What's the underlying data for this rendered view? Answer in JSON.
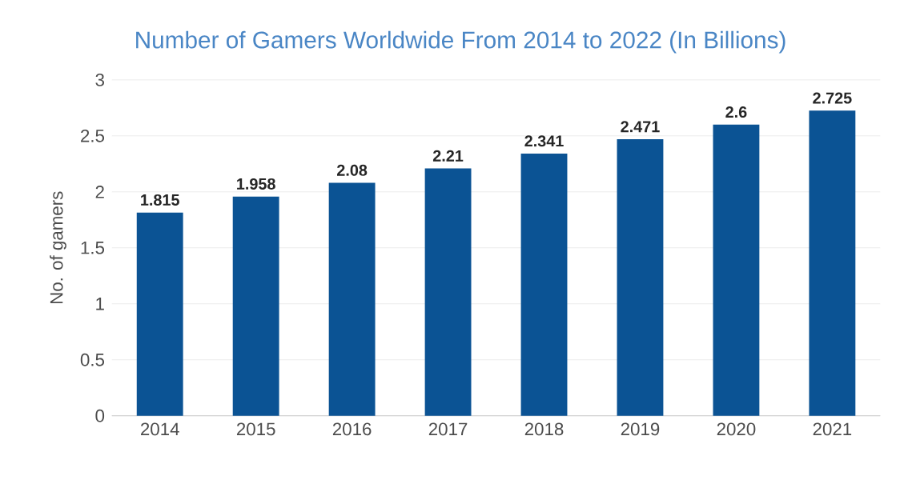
{
  "chart_data": {
    "type": "bar",
    "title": "Number of Gamers Worldwide From 2014 to 2022 (In Billions)",
    "ylabel": "No. of gamers",
    "categories": [
      "2014",
      "2015",
      "2016",
      "2017",
      "2018",
      "2019",
      "2020",
      "2021"
    ],
    "values": [
      1.815,
      1.958,
      2.08,
      2.21,
      2.341,
      2.471,
      2.6,
      2.725
    ],
    "color": "#0b5394",
    "ylim": [
      0,
      3
    ],
    "yticks": [
      0,
      0.5,
      1,
      1.5,
      2,
      2.5,
      3
    ],
    "grid": "y",
    "data_labels": true
  }
}
